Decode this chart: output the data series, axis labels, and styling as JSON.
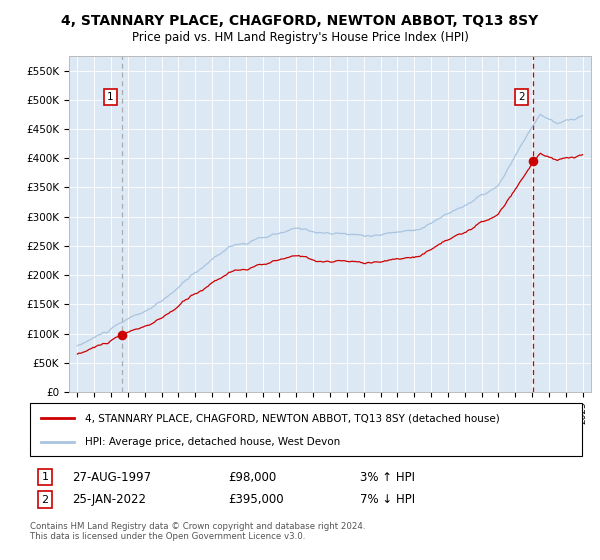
{
  "title": "4, STANNARY PLACE, CHAGFORD, NEWTON ABBOT, TQ13 8SY",
  "subtitle": "Price paid vs. HM Land Registry's House Price Index (HPI)",
  "legend_line1": "4, STANNARY PLACE, CHAGFORD, NEWTON ABBOT, TQ13 8SY (detached house)",
  "legend_line2": "HPI: Average price, detached house, West Devon",
  "annotation1_label": "1",
  "annotation1_date": "27-AUG-1997",
  "annotation1_price": "£98,000",
  "annotation1_hpi": "3% ↑ HPI",
  "annotation2_label": "2",
  "annotation2_date": "25-JAN-2022",
  "annotation2_price": "£395,000",
  "annotation2_hpi": "7% ↓ HPI",
  "footer": "Contains HM Land Registry data © Crown copyright and database right 2024.\nThis data is licensed under the Open Government Licence v3.0.",
  "sale1_year": 1997.65,
  "sale1_value": 98000,
  "sale2_year": 2022.07,
  "sale2_value": 395000,
  "hpi_color": "#aac4e0",
  "price_color": "#cc0000",
  "dashed1_color": "#aaaaaa",
  "dashed2_color": "#cc0000",
  "plot_bg": "#dce9f5",
  "ylim_min": 0,
  "ylim_max": 575000,
  "xlim_min": 1994.5,
  "xlim_max": 2025.5,
  "yticks": [
    0,
    50000,
    100000,
    150000,
    200000,
    250000,
    300000,
    350000,
    400000,
    450000,
    500000,
    550000
  ],
  "ytick_labels": [
    "£0",
    "£50K",
    "£100K",
    "£150K",
    "£200K",
    "£250K",
    "£300K",
    "£350K",
    "£400K",
    "£450K",
    "£500K",
    "£550K"
  ],
  "xticks": [
    1995,
    1996,
    1997,
    1998,
    1999,
    2000,
    2001,
    2002,
    2003,
    2004,
    2005,
    2006,
    2007,
    2008,
    2009,
    2010,
    2011,
    2012,
    2013,
    2014,
    2015,
    2016,
    2017,
    2018,
    2019,
    2020,
    2021,
    2022,
    2023,
    2024,
    2025
  ]
}
